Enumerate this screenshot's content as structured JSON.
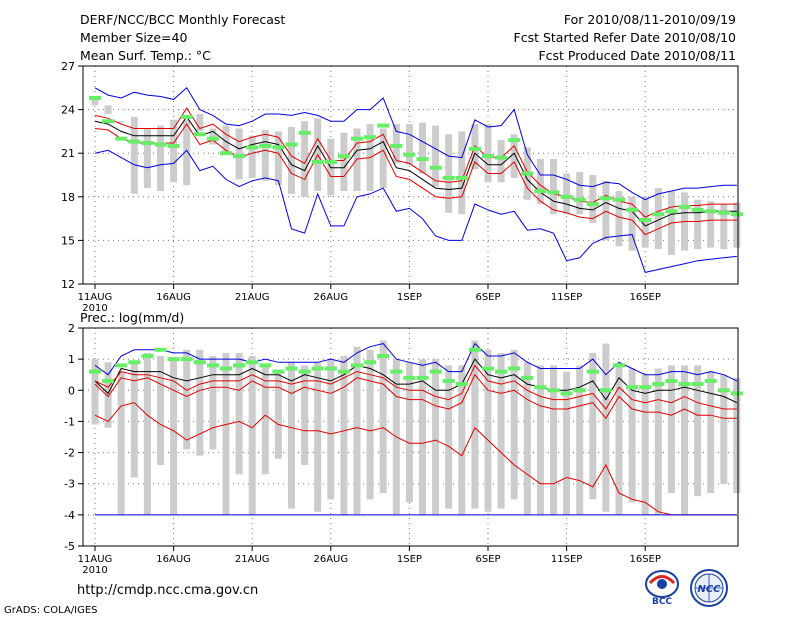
{
  "header": {
    "title": "DERF/NCC/BCC Monthly Forecast",
    "member_size": "Member Size=40",
    "variable": "Mean Surf. Temp.: °C",
    "period": "For 2010/08/11-2010/09/19",
    "fcst_started": "Fcst Started Refer Date 2010/08/10",
    "fcst_produced": "Fcst Produced Date 2010/08/11"
  },
  "footer": {
    "url": "http://cmdp.ncc.cma.gov.cn",
    "grads_credit": "GrADS: COLA/IGES",
    "logo_bcc_text": "BCC",
    "logo_ncc_text": "NCC"
  },
  "colors": {
    "ensemble_box": "#cccccc",
    "observation": "#66ee66",
    "mean": "#000000",
    "spread_inner": "#e00000",
    "spread_outer": "#0000e0",
    "grid": "#777777"
  },
  "chart_data": [
    {
      "type": "line",
      "title": "Mean Surf. Temp.: °C",
      "xlabel": "",
      "ylabel": "°C",
      "ylim": [
        12,
        27
      ],
      "yticks": [
        12,
        15,
        18,
        21,
        24,
        27
      ],
      "xtick_labels": [
        "11AUG",
        "16AUG",
        "21AUG",
        "26AUG",
        "1SEP",
        "6SEP",
        "11SEP",
        "16SEP"
      ],
      "year_label": "2010",
      "grid": true,
      "box_low": [
        24.3,
        23.7,
        23.1,
        18.2,
        18.6,
        18.4,
        19.0,
        18.8,
        22.5,
        21.6,
        21.0,
        19.2,
        19.3,
        19.1,
        18.8,
        18.2,
        18.0,
        18.4,
        18.1,
        18.4,
        18.4,
        18.4,
        18.6,
        20.3,
        20.2,
        19.6,
        18.7,
        16.9,
        16.8,
        19.9,
        19.0,
        19.0,
        19.3,
        17.8,
        17.5,
        16.8,
        16.8,
        16.8,
        16.2,
        15.0,
        14.6,
        14.3,
        14.5,
        14.4,
        14.0,
        14.3,
        14.4,
        14.5,
        14.4,
        14.5
      ],
      "box_high": [
        24.9,
        24.3,
        23.2,
        23.5,
        22.7,
        22.9,
        23.3,
        23.3,
        23.7,
        22.7,
        22.9,
        22.7,
        22.2,
        22.6,
        22.5,
        22.8,
        23.2,
        23.4,
        22.0,
        22.4,
        22.7,
        23.0,
        22.7,
        23.0,
        23.0,
        23.1,
        22.9,
        22.3,
        22.5,
        23.0,
        23.0,
        21.9,
        22.3,
        21.4,
        20.6,
        20.6,
        19.6,
        19.7,
        19.5,
        19.1,
        18.4,
        18.0,
        18.0,
        18.6,
        18.4,
        18.3,
        17.8,
        17.7,
        17.5,
        17.6
      ],
      "series": [
        {
          "name": "Observation",
          "values": [
            24.8,
            23.2,
            22.0,
            21.8,
            21.7,
            21.6,
            21.5,
            23.5,
            22.3,
            22.0,
            21.0,
            20.8,
            21.4,
            21.5,
            21.4,
            21.6,
            22.4,
            20.4,
            20.4,
            20.8,
            22.0,
            22.1,
            22.9,
            21.5,
            20.9,
            20.6,
            20.0,
            19.3,
            19.3,
            21.3,
            20.8,
            20.7,
            21.9,
            19.6,
            18.4,
            18.3,
            18.0,
            17.8,
            17.5,
            17.9,
            17.8,
            17.1,
            16.4,
            16.8,
            17.0,
            17.3,
            17.1,
            17.0,
            16.9,
            16.8
          ]
        },
        {
          "name": "Ensemble mean",
          "values": [
            23.2,
            23.0,
            22.5,
            22.2,
            22.2,
            22.2,
            22.2,
            23.5,
            22.2,
            22.5,
            21.8,
            21.3,
            21.6,
            21.8,
            21.6,
            20.2,
            19.8,
            21.5,
            20.0,
            20.0,
            21.2,
            21.3,
            21.8,
            20.0,
            19.8,
            19.2,
            18.6,
            18.5,
            18.6,
            21.0,
            20.2,
            20.2,
            21.0,
            19.2,
            18.3,
            17.7,
            17.5,
            17.2,
            17.1,
            17.6,
            17.2,
            17.0,
            16.0,
            16.4,
            16.8,
            16.9,
            16.9,
            17.0,
            17.0,
            17.0
          ]
        },
        {
          "name": "Inner upper (red)",
          "values": [
            23.6,
            23.4,
            23.0,
            22.7,
            22.7,
            22.7,
            22.7,
            24.1,
            22.7,
            23.0,
            22.3,
            21.8,
            22.1,
            22.3,
            22.1,
            20.8,
            20.3,
            22.0,
            20.5,
            20.5,
            21.7,
            21.8,
            22.3,
            20.5,
            20.3,
            19.7,
            19.1,
            19.0,
            19.1,
            21.5,
            20.7,
            20.7,
            21.5,
            19.7,
            18.8,
            18.2,
            18.0,
            17.7,
            17.6,
            18.1,
            17.7,
            17.5,
            16.6,
            17.0,
            17.3,
            17.4,
            17.4,
            17.5,
            17.5,
            17.5
          ]
        },
        {
          "name": "Inner lower (red)",
          "values": [
            22.7,
            22.6,
            22.0,
            21.7,
            21.7,
            21.7,
            21.7,
            23.0,
            21.6,
            21.9,
            21.2,
            20.7,
            21.0,
            21.2,
            21.0,
            19.6,
            19.2,
            20.9,
            19.4,
            19.4,
            20.6,
            20.7,
            21.2,
            19.4,
            19.2,
            18.6,
            18.0,
            17.9,
            18.0,
            20.4,
            19.6,
            19.6,
            20.4,
            18.6,
            17.7,
            17.1,
            16.9,
            16.6,
            16.5,
            17.0,
            16.6,
            16.4,
            15.4,
            15.8,
            16.2,
            16.3,
            16.3,
            16.4,
            16.4,
            16.4
          ]
        },
        {
          "name": "Outer upper (blue)",
          "values": [
            25.5,
            25.0,
            24.8,
            25.2,
            25.0,
            24.9,
            24.7,
            25.5,
            24.0,
            23.6,
            23.0,
            22.9,
            23.2,
            23.7,
            23.7,
            23.6,
            23.8,
            23.6,
            23.2,
            23.2,
            24.0,
            24.0,
            24.8,
            22.5,
            22.3,
            21.8,
            21.3,
            20.8,
            20.7,
            23.3,
            22.8,
            22.9,
            24.0,
            20.9,
            19.5,
            19.5,
            19.2,
            18.8,
            18.7,
            19.0,
            18.9,
            18.3,
            17.8,
            18.2,
            18.4,
            18.6,
            18.6,
            18.7,
            18.8,
            18.8
          ]
        },
        {
          "name": "Outer lower (blue)",
          "values": [
            21.0,
            21.2,
            20.7,
            20.2,
            20.0,
            20.2,
            20.3,
            21.2,
            19.8,
            20.1,
            19.2,
            18.7,
            19.1,
            19.3,
            19.1,
            15.8,
            15.5,
            18.2,
            16.0,
            16.0,
            18.0,
            18.2,
            18.6,
            17.0,
            17.2,
            16.5,
            15.3,
            15.0,
            15.0,
            17.5,
            17.1,
            16.8,
            17.0,
            15.7,
            15.8,
            15.5,
            13.6,
            13.8,
            14.8,
            15.2,
            15.3,
            15.4,
            12.8,
            13.0,
            13.2,
            13.4,
            13.6,
            13.7,
            13.8,
            13.9
          ]
        }
      ]
    },
    {
      "type": "line",
      "title": "Prec.: log(mm/d)",
      "xlabel": "",
      "ylabel": "log(mm/d)",
      "ylim": [
        -5,
        2
      ],
      "yticks": [
        -5,
        -4,
        -3,
        -2,
        -1,
        0,
        1,
        2
      ],
      "xtick_labels": [
        "11AUG",
        "16AUG",
        "21AUG",
        "26AUG",
        "1SEP",
        "6SEP",
        "11SEP",
        "16SEP"
      ],
      "year_label": "2010",
      "grid": true,
      "box_low": [
        -1.1,
        -1.2,
        -4.0,
        -2.8,
        -4.0,
        -2.4,
        -4.0,
        -1.9,
        -2.1,
        -1.9,
        -4.0,
        -2.7,
        -4.0,
        -2.7,
        -2.2,
        -3.8,
        -2.4,
        -3.9,
        -3.5,
        -4.0,
        -4.0,
        -3.5,
        -3.3,
        -4.0,
        -3.6,
        -4.0,
        -4.0,
        -3.8,
        -4.0,
        -3.8,
        -3.9,
        -3.8,
        -3.5,
        -4.0,
        -4.0,
        -4.0,
        -4.0,
        -4.0,
        -3.5,
        -3.9,
        -4.0,
        -3.6,
        -4.0,
        -4.0,
        -3.3,
        -4.0,
        -3.4,
        -3.3,
        -3.0,
        -3.3
      ],
      "box_high": [
        1.0,
        0.9,
        0.6,
        0.9,
        1.2,
        1.1,
        1.0,
        1.3,
        1.3,
        1.1,
        1.2,
        1.2,
        1.1,
        0.8,
        0.6,
        0.9,
        0.8,
        0.9,
        1.0,
        1.1,
        1.4,
        1.3,
        1.6,
        1.0,
        0.9,
        1.0,
        1.0,
        0.8,
        0.8,
        1.6,
        1.3,
        1.2,
        1.3,
        0.9,
        0.8,
        0.8,
        0.6,
        0.8,
        1.2,
        1.5,
        0.8,
        0.7,
        0.5,
        0.7,
        0.8,
        0.8,
        0.8,
        0.6,
        0.5,
        0.4
      ],
      "series": [
        {
          "name": "Observation",
          "values": [
            0.6,
            0.3,
            0.8,
            0.9,
            1.1,
            1.3,
            1.0,
            1.0,
            0.9,
            0.8,
            0.7,
            0.8,
            0.9,
            0.8,
            0.6,
            0.7,
            0.6,
            0.7,
            0.7,
            0.6,
            0.8,
            0.9,
            1.1,
            0.6,
            0.4,
            0.4,
            0.6,
            0.3,
            0.2,
            1.3,
            0.7,
            0.6,
            0.7,
            0.4,
            0.1,
            0.0,
            -0.1,
            0.0,
            0.6,
            0.0,
            0.8,
            0.1,
            0.1,
            0.2,
            0.3,
            0.2,
            0.2,
            0.3,
            0.0,
            -0.1
          ]
        },
        {
          "name": "Ensemble mean",
          "values": [
            0.3,
            -0.1,
            0.7,
            0.6,
            0.6,
            0.6,
            0.4,
            0.3,
            0.4,
            0.5,
            0.5,
            0.5,
            0.7,
            0.5,
            0.5,
            0.3,
            0.5,
            0.4,
            0.3,
            0.5,
            0.8,
            0.7,
            0.5,
            0.2,
            0.2,
            0.3,
            0.0,
            0.0,
            0.2,
            1.0,
            0.5,
            0.4,
            0.5,
            0.2,
            0.1,
            0.0,
            0.0,
            0.1,
            0.3,
            -0.3,
            0.4,
            0.0,
            -0.1,
            0.0,
            0.0,
            0.1,
            0.0,
            -0.1,
            -0.2,
            -0.4
          ]
        },
        {
          "name": "Inner upper (red)",
          "values": [
            0.3,
            0.1,
            0.6,
            0.5,
            0.5,
            0.4,
            0.3,
            0.0,
            0.2,
            0.3,
            0.3,
            0.3,
            0.5,
            0.3,
            0.3,
            0.2,
            0.3,
            0.3,
            0.2,
            0.4,
            0.6,
            0.5,
            0.4,
            0.1,
            0.0,
            0.0,
            -0.2,
            -0.3,
            -0.1,
            0.8,
            0.3,
            0.2,
            0.3,
            0.0,
            -0.2,
            -0.3,
            -0.3,
            -0.2,
            -0.1,
            -0.6,
            0.1,
            -0.3,
            -0.4,
            -0.3,
            -0.4,
            -0.2,
            -0.4,
            -0.5,
            -0.6,
            -0.6
          ]
        },
        {
          "name": "Inner lower (red)",
          "values": [
            0.2,
            -0.2,
            0.4,
            0.3,
            0.4,
            0.2,
            0.0,
            -0.2,
            0.0,
            0.1,
            0.1,
            0.0,
            0.3,
            0.1,
            0.1,
            -0.1,
            0.1,
            0.0,
            -0.1,
            0.1,
            0.4,
            0.3,
            0.2,
            -0.2,
            -0.3,
            -0.3,
            -0.5,
            -0.6,
            -0.4,
            0.5,
            0.0,
            -0.1,
            0.0,
            -0.3,
            -0.5,
            -0.6,
            -0.6,
            -0.5,
            -0.4,
            -0.9,
            -0.2,
            -0.6,
            -0.7,
            -0.7,
            -0.8,
            -0.6,
            -0.8,
            -0.8,
            -0.9,
            -0.9
          ]
        },
        {
          "name": "Lowest (red)",
          "values": [
            -0.8,
            -1.0,
            -0.5,
            -0.4,
            -0.8,
            -1.1,
            -1.3,
            -1.6,
            -1.4,
            -1.2,
            -1.1,
            -1.0,
            -1.2,
            -0.8,
            -1.1,
            -1.2,
            -1.3,
            -1.3,
            -1.4,
            -1.3,
            -1.2,
            -1.3,
            -1.2,
            -1.5,
            -1.7,
            -1.7,
            -1.6,
            -1.8,
            -2.1,
            -1.2,
            -1.6,
            -2.0,
            -2.4,
            -2.7,
            -3.0,
            -3.0,
            -2.8,
            -2.9,
            -3.1,
            -2.4,
            -3.3,
            -3.5,
            -3.6,
            -3.9,
            -4.0,
            -4.0,
            -4.0,
            -4.0,
            -4.0,
            -4.0
          ]
        },
        {
          "name": "Outer upper (blue)",
          "values": [
            0.8,
            0.5,
            1.1,
            1.3,
            1.3,
            1.3,
            1.2,
            1.2,
            1.0,
            1.0,
            1.0,
            1.0,
            0.9,
            1.0,
            0.9,
            0.9,
            0.9,
            0.9,
            1.0,
            0.9,
            1.2,
            1.4,
            1.5,
            1.0,
            0.9,
            0.8,
            0.9,
            0.6,
            0.6,
            1.5,
            1.1,
            1.1,
            1.2,
            0.9,
            0.7,
            0.7,
            0.7,
            0.7,
            1.0,
            0.5,
            0.9,
            0.7,
            0.5,
            0.5,
            0.6,
            0.6,
            0.5,
            0.6,
            0.5,
            0.3
          ]
        },
        {
          "name": "Outer lower (blue)",
          "values": [
            -4.0,
            -4.0,
            -4.0,
            -4.0,
            -4.0,
            -4.0,
            -4.0,
            -4.0,
            -4.0,
            -4.0,
            -4.0,
            -4.0,
            -4.0,
            -4.0,
            -4.0,
            -4.0,
            -4.0,
            -4.0,
            -4.0,
            -4.0,
            -4.0,
            -4.0,
            -4.0,
            -4.0,
            -4.0,
            -4.0,
            -4.0,
            -4.0,
            -4.0,
            -4.0,
            -4.0,
            -4.0,
            -4.0,
            -4.0,
            -4.0,
            -4.0,
            -4.0,
            -4.0,
            -4.0,
            -4.0,
            -4.0,
            -4.0,
            -4.0,
            -4.0,
            -4.0,
            -4.0,
            -4.0,
            -4.0,
            -4.0,
            -4.0
          ]
        }
      ]
    }
  ]
}
